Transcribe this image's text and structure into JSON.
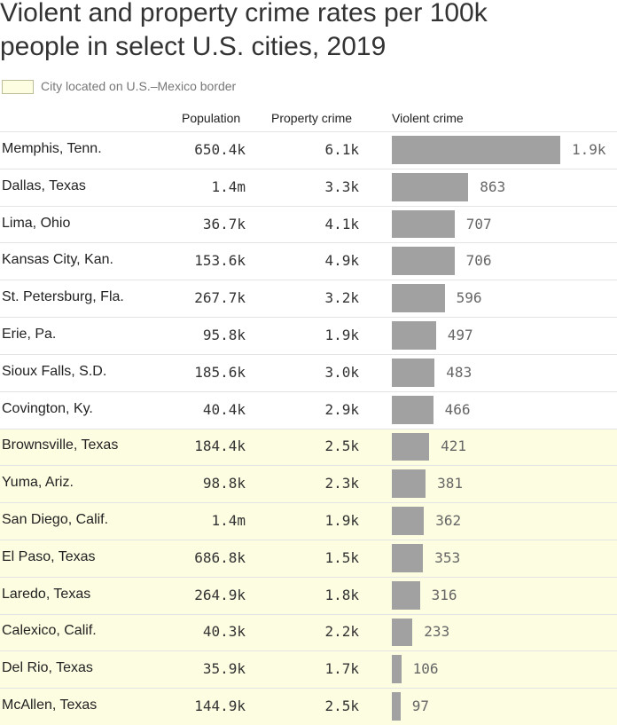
{
  "chart_data": {
    "type": "bar",
    "title": "Violent and property crime rates per 100k people in select U.S. cities, 2019",
    "legend_label": "City located on U.S.–Mexico border",
    "highlight_color": "#fdfde2",
    "color": "#a1a1a1",
    "columns": [
      "Population",
      "Property crime",
      "Violent crime"
    ],
    "categories": [
      "Memphis, Tenn.",
      "Dallas, Texas",
      "Lima, Ohio",
      "Kansas City, Kan.",
      "St. Petersburg, Fla.",
      "Erie, Pa.",
      "Sioux Falls, S.D.",
      "Covington, Ky.",
      "Brownsville, Texas",
      "Yuma, Ariz.",
      "San Diego, Calif.",
      "El Paso, Texas",
      "Laredo, Texas",
      "Calexico, Calif.",
      "Del Rio, Texas",
      "McAllen, Texas"
    ],
    "population": [
      "650.4k",
      "1.4m",
      "36.7k",
      "153.6k",
      "267.7k",
      "95.8k",
      "185.6k",
      "40.4k",
      "184.4k",
      "98.8k",
      "1.4m",
      "686.8k",
      "264.9k",
      "40.3k",
      "35.9k",
      "144.9k"
    ],
    "property_crime": [
      "6.1k",
      "3.3k",
      "4.1k",
      "4.9k",
      "3.2k",
      "1.9k",
      "3.0k",
      "2.9k",
      "2.5k",
      "2.3k",
      "1.9k",
      "1.5k",
      "1.8k",
      "2.2k",
      "1.7k",
      "2.5k"
    ],
    "values": [
      1900,
      863,
      707,
      706,
      596,
      497,
      483,
      466,
      421,
      381,
      362,
      353,
      316,
      233,
      106,
      97
    ],
    "value_labels": [
      "1.9k",
      "863",
      "707",
      "706",
      "596",
      "497",
      "483",
      "466",
      "421",
      "381",
      "362",
      "353",
      "316",
      "233",
      "106",
      "97"
    ],
    "border": [
      false,
      false,
      false,
      false,
      false,
      false,
      false,
      false,
      true,
      true,
      true,
      true,
      true,
      true,
      true,
      true
    ]
  }
}
